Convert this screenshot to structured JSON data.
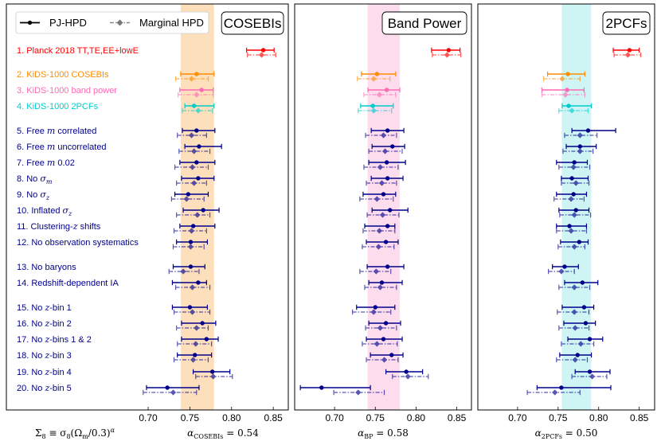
{
  "legend": {
    "main_label": "PJ-HPD",
    "marginal_label": "Marginal HPD"
  },
  "footer": {
    "definition": [
      "Σ",
      "8",
      " ≡ σ",
      "8",
      "(Ω",
      "m",
      "/0.3)",
      "α"
    ]
  },
  "rows": [
    {
      "parts": [
        [
          "1. Planck 2018 TT,TE,EE+lowE",
          ""
        ]
      ],
      "color": "#ff0000"
    },
    {
      "parts": [
        [
          "2. KiDS-1000 COSEBIs",
          ""
        ]
      ],
      "color": "#ff8c00"
    },
    {
      "parts": [
        [
          "3. KiDS-1000 band power",
          ""
        ]
      ],
      "color": "#ff69b4"
    },
    {
      "parts": [
        [
          "4. KiDS-1000 2PCFs",
          ""
        ]
      ],
      "color": "#00cccc"
    },
    {
      "parts": [
        [
          "5. Free ",
          ""
        ],
        [
          "m",
          "i"
        ],
        [
          " correlated",
          ""
        ]
      ],
      "color": "#00008b"
    },
    {
      "parts": [
        [
          "6. Free ",
          ""
        ],
        [
          "m",
          "i"
        ],
        [
          " uncorrelated",
          ""
        ]
      ],
      "color": "#00008b"
    },
    {
      "parts": [
        [
          "7. Free ",
          ""
        ],
        [
          "m",
          "i"
        ],
        [
          " 0.02",
          ""
        ]
      ],
      "color": "#00008b"
    },
    {
      "parts": [
        [
          "8. No ",
          ""
        ],
        [
          "σ",
          "i"
        ],
        [
          "m",
          "sub"
        ]
      ],
      "color": "#00008b"
    },
    {
      "parts": [
        [
          "9. No ",
          ""
        ],
        [
          "σ",
          "i"
        ],
        [
          "z",
          "sub"
        ]
      ],
      "color": "#00008b"
    },
    {
      "parts": [
        [
          "10. Inflated ",
          ""
        ],
        [
          "σ",
          "i"
        ],
        [
          "z",
          "sub"
        ]
      ],
      "color": "#00008b"
    },
    {
      "parts": [
        [
          "11. Clustering-",
          ""
        ],
        [
          "z",
          "i"
        ],
        [
          " shifts",
          ""
        ]
      ],
      "color": "#00008b"
    },
    {
      "parts": [
        [
          "12. No observation systematics",
          ""
        ]
      ],
      "color": "#00008b"
    },
    {
      "parts": [
        [
          "13. No baryons",
          ""
        ]
      ],
      "color": "#00008b"
    },
    {
      "parts": [
        [
          "14. Redshift-dependent IA",
          ""
        ]
      ],
      "color": "#00008b"
    },
    {
      "parts": [
        [
          "15. No ",
          ""
        ],
        [
          "z",
          "i"
        ],
        [
          "-bin 1",
          ""
        ]
      ],
      "color": "#00008b"
    },
    {
      "parts": [
        [
          "16. No ",
          ""
        ],
        [
          "z",
          "i"
        ],
        [
          "-bin 2",
          ""
        ]
      ],
      "color": "#00008b"
    },
    {
      "parts": [
        [
          "17. No ",
          ""
        ],
        [
          "z",
          "i"
        ],
        [
          "-bins 1 & 2",
          ""
        ]
      ],
      "color": "#00008b"
    },
    {
      "parts": [
        [
          "18. No ",
          ""
        ],
        [
          "z",
          "i"
        ],
        [
          "-bin 3",
          ""
        ]
      ],
      "color": "#00008b"
    },
    {
      "parts": [
        [
          "19. No ",
          ""
        ],
        [
          "z",
          "i"
        ],
        [
          "-bin 4",
          ""
        ]
      ],
      "color": "#00008b"
    },
    {
      "parts": [
        [
          "20. No ",
          ""
        ],
        [
          "z",
          "i"
        ],
        [
          "-bin 5",
          ""
        ]
      ],
      "color": "#00008b"
    }
  ],
  "chart_data": [
    {
      "type": "errorbar",
      "title": "COSEBIs",
      "xlabel": [
        "α",
        "COSEBIs",
        " = 0.54"
      ],
      "xlim": [
        0.53,
        0.868
      ],
      "xticks": [
        "0.70",
        "0.75",
        "0.80",
        "0.85"
      ],
      "band": [
        0.739,
        0.779
      ],
      "band_color": "#fdd9b0",
      "series": [
        {
          "name": "PJ-HPD",
          "points": [
            [
              0.838,
              0.818,
              0.851
            ],
            [
              0.758,
              0.739,
              0.779
            ],
            [
              0.764,
              0.738,
              0.778
            ],
            [
              0.755,
              0.744,
              0.779
            ],
            [
              0.758,
              0.741,
              0.78
            ],
            [
              0.761,
              0.744,
              0.788
            ],
            [
              0.758,
              0.738,
              0.78
            ],
            [
              0.76,
              0.74,
              0.779
            ],
            [
              0.748,
              0.732,
              0.772
            ],
            [
              0.766,
              0.742,
              0.785
            ],
            [
              0.754,
              0.738,
              0.78
            ],
            [
              0.751,
              0.734,
              0.771
            ],
            [
              0.751,
              0.73,
              0.768
            ],
            [
              0.76,
              0.729,
              0.77
            ],
            [
              0.75,
              0.729,
              0.771
            ],
            [
              0.765,
              0.74,
              0.781
            ],
            [
              0.77,
              0.74,
              0.784
            ],
            [
              0.756,
              0.735,
              0.776
            ],
            [
              0.777,
              0.754,
              0.798
            ],
            [
              0.723,
              0.698,
              0.761
            ]
          ]
        },
        {
          "name": "Marginal HPD",
          "points": [
            [
              0.836,
              0.819,
              0.853
            ],
            [
              0.752,
              0.733,
              0.772
            ],
            [
              0.758,
              0.736,
              0.778
            ],
            [
              0.76,
              0.741,
              0.777
            ],
            [
              0.752,
              0.735,
              0.77
            ],
            [
              0.755,
              0.737,
              0.774
            ],
            [
              0.753,
              0.732,
              0.772
            ],
            [
              0.755,
              0.734,
              0.77
            ],
            [
              0.746,
              0.728,
              0.767
            ],
            [
              0.759,
              0.734,
              0.774
            ],
            [
              0.752,
              0.731,
              0.77
            ],
            [
              0.751,
              0.73,
              0.767
            ],
            [
              0.742,
              0.725,
              0.761
            ],
            [
              0.753,
              0.733,
              0.774
            ],
            [
              0.753,
              0.731,
              0.774
            ],
            [
              0.758,
              0.734,
              0.772
            ],
            [
              0.757,
              0.735,
              0.776
            ],
            [
              0.754,
              0.731,
              0.772
            ],
            [
              0.778,
              0.757,
              0.801
            ],
            [
              0.73,
              0.694,
              0.758
            ]
          ]
        }
      ]
    },
    {
      "type": "errorbar",
      "title": "Band Power",
      "xlabel": [
        "α",
        "BP",
        " = 0.58"
      ],
      "xlim": [
        0.651,
        0.868
      ],
      "xticks": [
        "0.70",
        "0.75",
        "0.80",
        "0.85"
      ],
      "band": [
        0.7405,
        0.78
      ],
      "band_color": "#fdd6ea",
      "series": [
        {
          "name": "PJ-HPD",
          "points": [
            [
              0.84,
              0.819,
              0.854
            ],
            [
              0.752,
              0.733,
              0.775
            ],
            [
              0.764,
              0.741,
              0.78
            ],
            [
              0.747,
              0.732,
              0.772
            ],
            [
              0.765,
              0.745,
              0.785
            ],
            [
              0.771,
              0.746,
              0.786
            ],
            [
              0.764,
              0.742,
              0.787
            ],
            [
              0.765,
              0.745,
              0.784
            ],
            [
              0.76,
              0.735,
              0.775
            ],
            [
              0.768,
              0.746,
              0.79
            ],
            [
              0.765,
              0.737,
              0.774
            ],
            [
              0.763,
              0.739,
              0.778
            ],
            [
              0.765,
              0.74,
              0.785
            ],
            [
              0.758,
              0.742,
              0.783
            ],
            [
              0.75,
              0.727,
              0.774
            ],
            [
              0.763,
              0.742,
              0.781
            ],
            [
              0.76,
              0.739,
              0.783
            ],
            [
              0.77,
              0.744,
              0.784
            ],
            [
              0.788,
              0.763,
              0.808
            ],
            [
              0.684,
              0.658,
              0.744
            ]
          ]
        },
        {
          "name": "Marginal HPD",
          "points": [
            [
              0.838,
              0.82,
              0.855
            ],
            [
              0.748,
              0.728,
              0.768
            ],
            [
              0.755,
              0.736,
              0.775
            ],
            [
              0.748,
              0.729,
              0.77
            ],
            [
              0.76,
              0.738,
              0.776
            ],
            [
              0.762,
              0.742,
              0.783
            ],
            [
              0.756,
              0.736,
              0.778
            ],
            [
              0.758,
              0.739,
              0.776
            ],
            [
              0.752,
              0.731,
              0.772
            ],
            [
              0.759,
              0.74,
              0.779
            ],
            [
              0.755,
              0.735,
              0.774
            ],
            [
              0.754,
              0.734,
              0.773
            ],
            [
              0.751,
              0.731,
              0.769
            ],
            [
              0.756,
              0.737,
              0.776
            ],
            [
              0.748,
              0.722,
              0.769
            ],
            [
              0.756,
              0.738,
              0.776
            ],
            [
              0.752,
              0.734,
              0.777
            ],
            [
              0.761,
              0.739,
              0.778
            ],
            [
              0.79,
              0.771,
              0.815
            ],
            [
              0.729,
              0.699,
              0.761
            ]
          ]
        }
      ]
    },
    {
      "type": "errorbar",
      "title": "2PCFs",
      "xlabel": [
        "α",
        "2PCFs",
        " = 0.50"
      ],
      "xlim": [
        0.651,
        0.869
      ],
      "xticks": [
        "0.70",
        "0.75",
        "0.80",
        "0.85"
      ],
      "band": [
        0.7546,
        0.7908
      ],
      "band_color": "#c6f2f2",
      "series": [
        {
          "name": "PJ-HPD",
          "points": [
            [
              0.838,
              0.818,
              0.85
            ],
            [
              0.762,
              0.737,
              0.783
            ],
            [
              0.761,
              0.73,
              0.782
            ],
            [
              0.763,
              0.755,
              0.791
            ],
            [
              0.787,
              0.767,
              0.821
            ],
            [
              0.777,
              0.76,
              0.797
            ],
            [
              0.77,
              0.748,
              0.786
            ],
            [
              0.767,
              0.754,
              0.787
            ],
            [
              0.769,
              0.748,
              0.785
            ],
            [
              0.772,
              0.751,
              0.788
            ],
            [
              0.764,
              0.748,
              0.785
            ],
            [
              0.776,
              0.753,
              0.787
            ],
            [
              0.758,
              0.743,
              0.775
            ],
            [
              0.78,
              0.758,
              0.799
            ],
            [
              0.782,
              0.755,
              0.794
            ],
            [
              0.784,
              0.757,
              0.796
            ],
            [
              0.789,
              0.762,
              0.805
            ],
            [
              0.774,
              0.752,
              0.791
            ],
            [
              0.789,
              0.771,
              0.814
            ],
            [
              0.754,
              0.724,
              0.815
            ]
          ]
        },
        {
          "name": "Marginal HPD",
          "points": [
            [
              0.836,
              0.819,
              0.852
            ],
            [
              0.755,
              0.732,
              0.777
            ],
            [
              0.759,
              0.73,
              0.783
            ],
            [
              0.767,
              0.751,
              0.787
            ],
            [
              0.777,
              0.758,
              0.798
            ],
            [
              0.777,
              0.756,
              0.793
            ],
            [
              0.769,
              0.751,
              0.789
            ],
            [
              0.772,
              0.754,
              0.788
            ],
            [
              0.766,
              0.745,
              0.782
            ],
            [
              0.77,
              0.752,
              0.79
            ],
            [
              0.766,
              0.748,
              0.785
            ],
            [
              0.77,
              0.75,
              0.783
            ],
            [
              0.754,
              0.738,
              0.77
            ],
            [
              0.77,
              0.751,
              0.789
            ],
            [
              0.77,
              0.749,
              0.788
            ],
            [
              0.771,
              0.751,
              0.788
            ],
            [
              0.778,
              0.754,
              0.794
            ],
            [
              0.771,
              0.748,
              0.786
            ],
            [
              0.792,
              0.767,
              0.81
            ],
            [
              0.746,
              0.712,
              0.777
            ]
          ]
        }
      ]
    }
  ]
}
